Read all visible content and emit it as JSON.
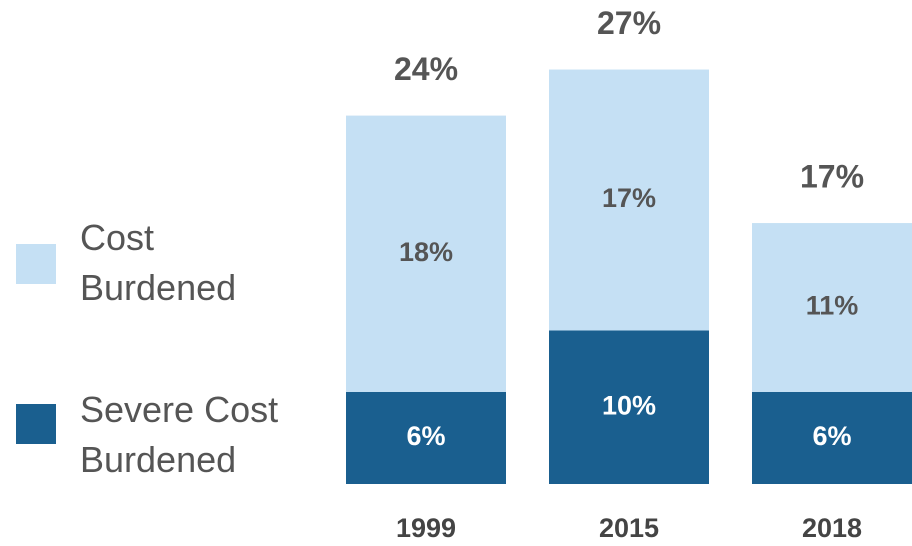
{
  "chart_data": {
    "type": "stacked-bar",
    "categories": [
      "1999",
      "2015",
      "2018"
    ],
    "series": [
      {
        "name": "Severe Cost Burdened",
        "color": "#1a5f8f",
        "values": [
          6,
          10,
          6
        ],
        "value_labels": [
          "6%",
          "10%",
          "6%"
        ]
      },
      {
        "name": "Cost Burdened",
        "color": "#c5e0f4",
        "values": [
          18,
          17,
          11
        ],
        "value_labels": [
          "18%",
          "17%",
          "11%"
        ]
      }
    ],
    "total_labels": [
      "24%",
      "27%",
      "17%"
    ],
    "legend": "left"
  }
}
